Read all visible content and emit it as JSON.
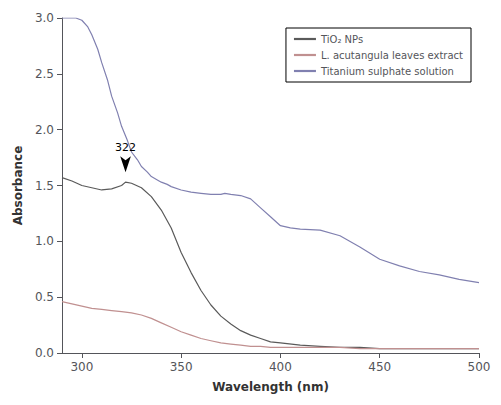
{
  "chart_data": {
    "type": "line",
    "xlabel": "Wavelength (nm)",
    "ylabel": "Absorbance",
    "xlim": [
      290,
      500
    ],
    "ylim": [
      0.0,
      3.0
    ],
    "xticks": [
      300,
      350,
      400,
      450,
      500
    ],
    "yticks": [
      {
        "value": 0.0,
        "label": "0.0"
      },
      0.5,
      {
        "value": 1.0,
        "label": "1.0"
      },
      1.5,
      {
        "value": 2.0,
        "label": "2.0"
      },
      2.5,
      {
        "value": 3.0,
        "label": "3.0"
      }
    ],
    "grid": false,
    "legend": "upper right",
    "annotations": [
      {
        "text": "322",
        "x": 322,
        "y": 1.53
      }
    ],
    "series": [
      {
        "name": "TiO₂ NPs",
        "color": "#5a5a5a",
        "x": [
          290,
          295,
          300,
          305,
          310,
          315,
          320,
          322,
          325,
          330,
          335,
          340,
          345,
          350,
          355,
          360,
          365,
          370,
          375,
          380,
          385,
          390,
          395,
          400,
          410,
          420,
          430,
          440,
          450,
          460,
          470,
          480,
          490,
          500
        ],
        "values": [
          1.57,
          1.54,
          1.5,
          1.48,
          1.46,
          1.47,
          1.5,
          1.53,
          1.52,
          1.48,
          1.4,
          1.28,
          1.12,
          0.9,
          0.72,
          0.56,
          0.43,
          0.33,
          0.26,
          0.2,
          0.16,
          0.13,
          0.1,
          0.09,
          0.07,
          0.06,
          0.05,
          0.05,
          0.04,
          0.04,
          0.04,
          0.04,
          0.04,
          0.04
        ]
      },
      {
        "name": "L. acutangula leaves extract",
        "color": "#c09090",
        "x": [
          290,
          295,
          300,
          305,
          310,
          315,
          320,
          325,
          330,
          335,
          340,
          345,
          350,
          355,
          360,
          365,
          370,
          375,
          380,
          385,
          390,
          395,
          400,
          410,
          420,
          430,
          440,
          450,
          460,
          470,
          480,
          490,
          500
        ],
        "values": [
          0.46,
          0.44,
          0.42,
          0.4,
          0.39,
          0.38,
          0.37,
          0.36,
          0.34,
          0.31,
          0.27,
          0.23,
          0.19,
          0.16,
          0.13,
          0.11,
          0.09,
          0.08,
          0.07,
          0.06,
          0.06,
          0.05,
          0.05,
          0.05,
          0.05,
          0.05,
          0.04,
          0.04,
          0.04,
          0.04,
          0.04,
          0.04,
          0.04
        ]
      },
      {
        "name": "Titanium sulphate solution",
        "color": "#8080b0",
        "x": [
          290,
          292,
          295,
          297,
          300,
          303,
          305,
          308,
          310,
          313,
          315,
          318,
          320,
          323,
          325,
          328,
          330,
          333,
          335,
          338,
          340,
          343,
          345,
          350,
          355,
          360,
          365,
          370,
          372,
          375,
          380,
          385,
          390,
          395,
          400,
          405,
          410,
          420,
          430,
          440,
          450,
          460,
          470,
          480,
          490,
          500
        ],
        "values": [
          3.0,
          3.0,
          3.0,
          3.0,
          2.98,
          2.92,
          2.85,
          2.72,
          2.6,
          2.44,
          2.3,
          2.15,
          2.03,
          1.9,
          1.8,
          1.73,
          1.67,
          1.62,
          1.58,
          1.55,
          1.53,
          1.51,
          1.49,
          1.46,
          1.44,
          1.43,
          1.42,
          1.42,
          1.43,
          1.42,
          1.41,
          1.38,
          1.3,
          1.22,
          1.14,
          1.12,
          1.11,
          1.1,
          1.05,
          0.95,
          0.84,
          0.78,
          0.73,
          0.7,
          0.66,
          0.63
        ]
      }
    ]
  }
}
